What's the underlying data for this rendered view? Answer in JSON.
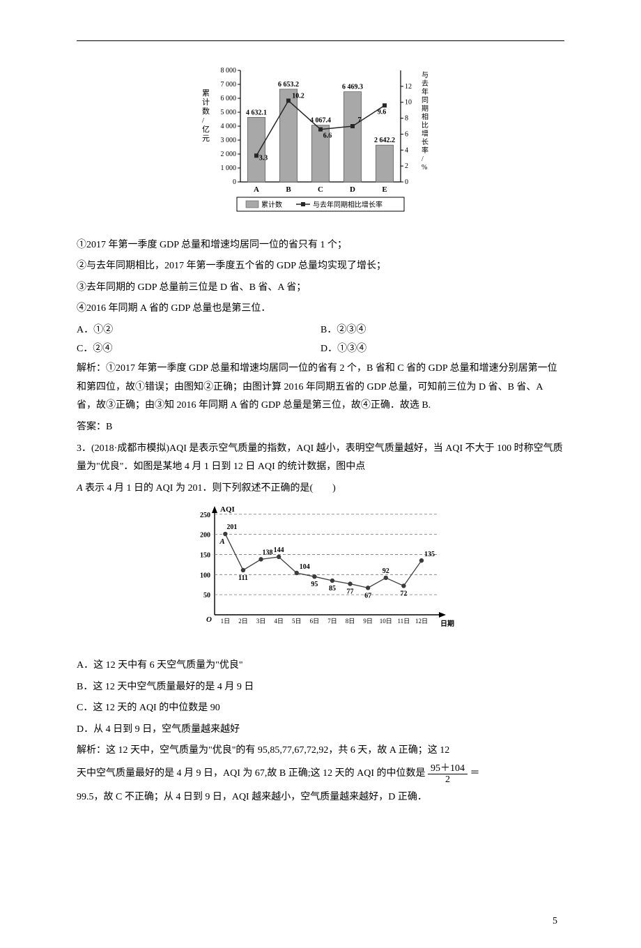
{
  "chart1": {
    "categories": [
      "A",
      "B",
      "C",
      "D",
      "E"
    ],
    "bar_values": [
      4632.1,
      6653.2,
      4067.4,
      6469.3,
      2642.2
    ],
    "line_values": [
      3.3,
      10.2,
      6.6,
      7.0,
      9.6
    ],
    "bar_color": "#a8a8a8",
    "line_color": "#262626",
    "grid_color": "#000000",
    "bg": "#ffffff",
    "left_axis": {
      "label": "累计数/亿元",
      "max": 8000,
      "step": 1000,
      "ticks": [
        "0",
        "1 000",
        "2 000",
        "3 000",
        "4 000",
        "5 000",
        "6 000",
        "7 000",
        "8 000"
      ]
    },
    "right_axis": {
      "label": "与去年同期相比增长率/%",
      "max": 14,
      "step": 2,
      "ticks": [
        "0",
        "2",
        "4",
        "6",
        "8",
        "10",
        "12"
      ]
    },
    "legend": {
      "bar": "累计数",
      "line": "与去年同期相比增长率"
    },
    "fontsize": 10,
    "bar_width": 0.55
  },
  "statements": {
    "s1": "①2017 年第一季度 GDP 总量和增速均居同一位的省只有 1 个；",
    "s2": "②与去年同期相比，2017 年第一季度五个省的 GDP 总量均实现了增长；",
    "s3": "③去年同期的 GDP 总量前三位是 D 省、B 省、A 省；",
    "s4": "④2016 年同期 A 省的 GDP 总量也是第三位．"
  },
  "q2_options": {
    "A": "A．①②",
    "B": "B．②③④",
    "C": "C．②④",
    "D": "D．①③④"
  },
  "q2_explain": "解析：①2017 年第一季度 GDP 总量和增速均居同一位的省有 2 个，B 省和 C 省的 GDP 总量和增速分别居第一位和第四位，故①错误；由图知②正确；由图计算 2016 年同期五省的 GDP 总量，可知前三位为 D 省、B 省、A 省，故③正确；由③知 2016 年同期 A 省的 GDP 总量是第三位，故④正确．故选 B.",
  "q2_answer": "答案：B",
  "q3_stem1": "3．(2018·成都市模拟)AQI 是表示空气质量的指数，AQI 越小，表明空气质量越好，当 AQI 不大于 100 时称空气质量为\"优良\"．如图是某地 4 月 1 日到 12 日 AQI 的统计数据，图中点",
  "q3_stem2_prefix": "",
  "q3_stem2_italic": "A",
  "q3_stem2_rest": " 表示 4 月 1 日的 AQI 为 201．则下列叙述不正确的是(　　)",
  "chart2": {
    "y_label": "AQI",
    "x_label": "日期",
    "days": [
      "1日",
      "2日",
      "3日",
      "4日",
      "5日",
      "6日",
      "7日",
      "8日",
      "9日",
      "10日",
      "11日",
      "12日"
    ],
    "values": [
      201,
      111,
      138,
      144,
      104,
      95,
      85,
      77,
      67,
      92,
      72,
      135
    ],
    "point_color": "#3b3b3b",
    "line_color": "#3b3b3b",
    "grid_color": "#777777",
    "bg": "#ffffff",
    "y_ticks": [
      50,
      100,
      150,
      200,
      250
    ],
    "y_max": 260,
    "fontsize": 10,
    "point_labelA": "A"
  },
  "q3_options": {
    "A": "A．这 12 天中有 6 天空气质量为\"优良\"",
    "B": "B．这 12 天中空气质量最好的是 4 月 9 日",
    "C": "C．这 12 天的 AQI 的中位数是 90",
    "D": "D．从 4 日到 9 日，空气质量越来越好"
  },
  "q3_explain_parts": {
    "p1": "解析：这 12 天中，空气质量为\"优良\"的有 95,85,77,67,72,92，共 6 天，故 A 正确；这 12",
    "p2_pre": "天中空气质量最好的是 4 月 9 日，AQI 为 67,故 B 正确;这 12 天的 AQI 的中位数是",
    "frac_num": "95＋104",
    "frac_den": "2",
    "p2_post": "＝",
    "p3": "99.5，故 C 不正确；从 4 日到 9 日，AQI 越来越小，空气质量越来越好，D 正确．"
  },
  "page_number": "5"
}
